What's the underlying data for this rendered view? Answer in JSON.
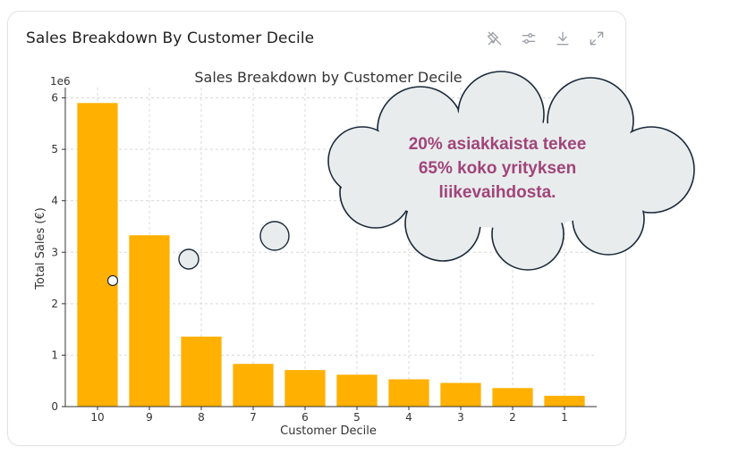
{
  "card": {
    "title": "Sales Breakdown By Customer Decile",
    "toolbar": [
      {
        "icon": "pin-off-icon",
        "label": "Unpin"
      },
      {
        "icon": "sliders-icon",
        "label": "Adjust"
      },
      {
        "icon": "download-icon",
        "label": "Download"
      },
      {
        "icon": "expand-icon",
        "label": "Expand"
      }
    ]
  },
  "chart_data": {
    "type": "bar",
    "title": "Sales Breakdown by Customer Decile",
    "xlabel": "Customer Decile",
    "ylabel": "Total Sales (€)",
    "y_multiplier_label": "1e6",
    "categories": [
      "10",
      "9",
      "8",
      "7",
      "6",
      "5",
      "4",
      "3",
      "2",
      "1"
    ],
    "values": [
      5.9,
      3.33,
      1.36,
      0.83,
      0.71,
      0.62,
      0.53,
      0.46,
      0.36,
      0.21
    ],
    "value_unit_multiplier": 1000000,
    "ylim": [
      0,
      6.2
    ],
    "yticks": [
      "0",
      "1",
      "2",
      "3",
      "4",
      "5",
      "6"
    ],
    "grid": true,
    "bar_color": "#ffb000"
  },
  "callout": {
    "lines": [
      "20% asiakkaista tekee",
      "65% koko yrityksen",
      "liikevaihdosta."
    ],
    "text_color": "#a0457a",
    "fill_color": "#e9eced",
    "stroke_color": "#1a2a3a"
  }
}
